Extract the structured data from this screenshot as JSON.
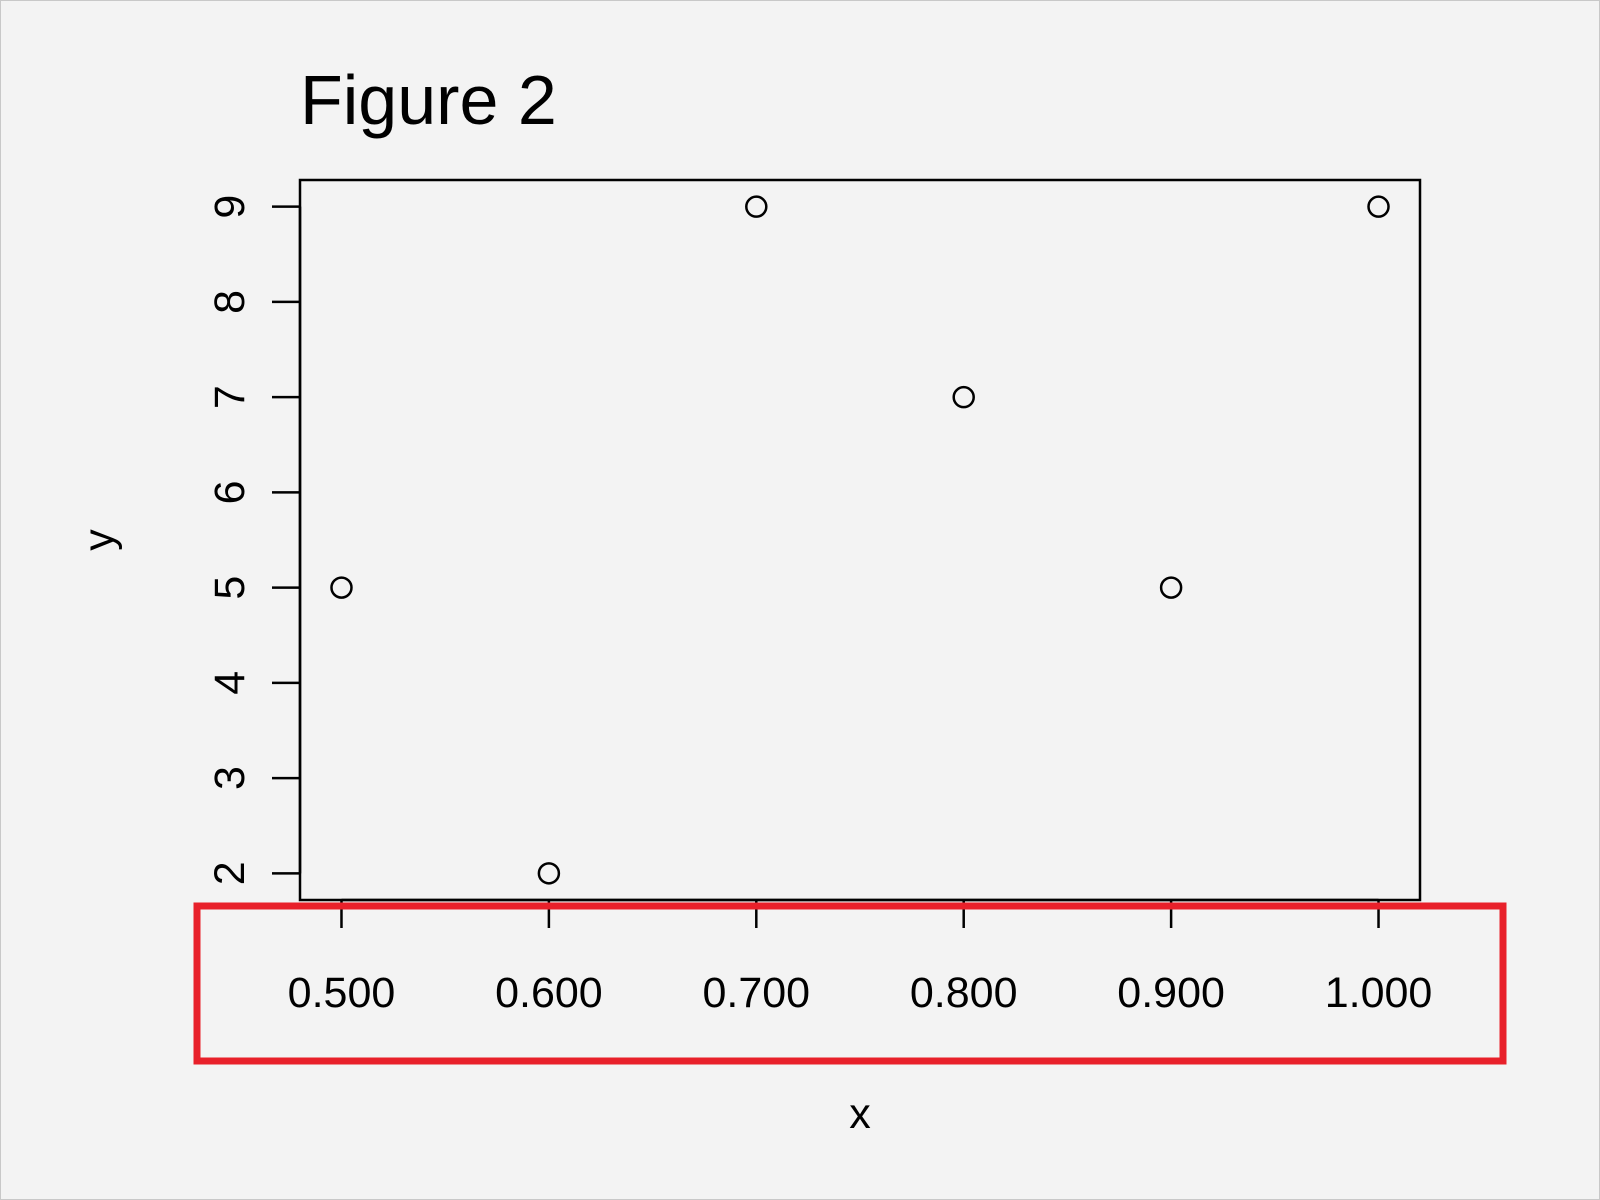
{
  "chart_data": {
    "type": "scatter",
    "title": "Figure 2",
    "xlabel": "x",
    "ylabel": "y",
    "x": [
      0.5,
      0.6,
      0.7,
      0.8,
      0.9,
      1.0
    ],
    "y": [
      5,
      2,
      9,
      7,
      5,
      9
    ],
    "xlim": [
      0.48,
      1.02
    ],
    "ylim": [
      1.72,
      9.28
    ],
    "x_ticks": [
      0.5,
      0.6,
      0.7,
      0.8,
      0.9,
      1.0
    ],
    "x_tick_labels": [
      "0.500",
      "0.600",
      "0.700",
      "0.800",
      "0.900",
      "1.000"
    ],
    "y_ticks": [
      2,
      3,
      4,
      5,
      6,
      7,
      8,
      9
    ],
    "y_tick_labels": [
      "2",
      "3",
      "4",
      "5",
      "6",
      "7",
      "8",
      "9"
    ],
    "marker": "open-circle",
    "grid": false,
    "legend": "none"
  },
  "colors": {
    "background": "#f3f3f3",
    "ink": "#000000",
    "highlight_box": "#e8202a"
  }
}
